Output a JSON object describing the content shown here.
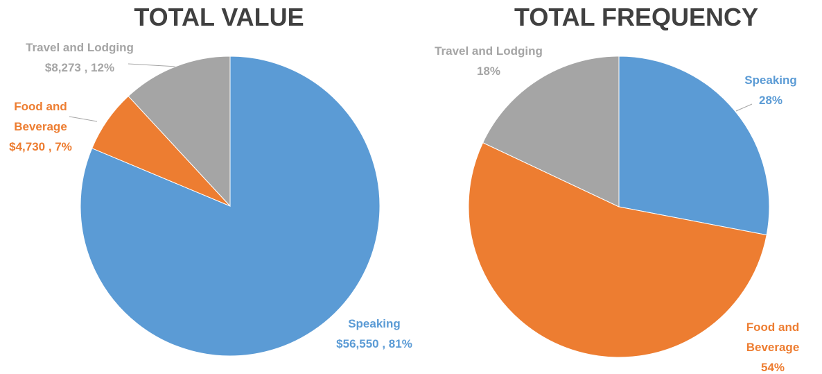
{
  "chart_data": [
    {
      "type": "pie",
      "title": "TOTAL VALUE",
      "categories": [
        "Speaking",
        "Food and Beverage",
        "Travel and Lodging"
      ],
      "values": [
        56550,
        4730,
        8273
      ],
      "value_labels": [
        "$56,550 , 81%",
        "$4,730 , 7%",
        "$8,273 , 12%"
      ],
      "colors": [
        "#5b9bd5",
        "#ed7d31",
        "#a5a5a5"
      ]
    },
    {
      "type": "pie",
      "title": "TOTAL FREQUENCY",
      "categories": [
        "Speaking",
        "Food and Beverage",
        "Travel and Lodging"
      ],
      "values": [
        28,
        54,
        18
      ],
      "value_labels": [
        "28%",
        "54%",
        "18%"
      ],
      "colors": [
        "#5b9bd5",
        "#ed7d31",
        "#a5a5a5"
      ]
    }
  ]
}
